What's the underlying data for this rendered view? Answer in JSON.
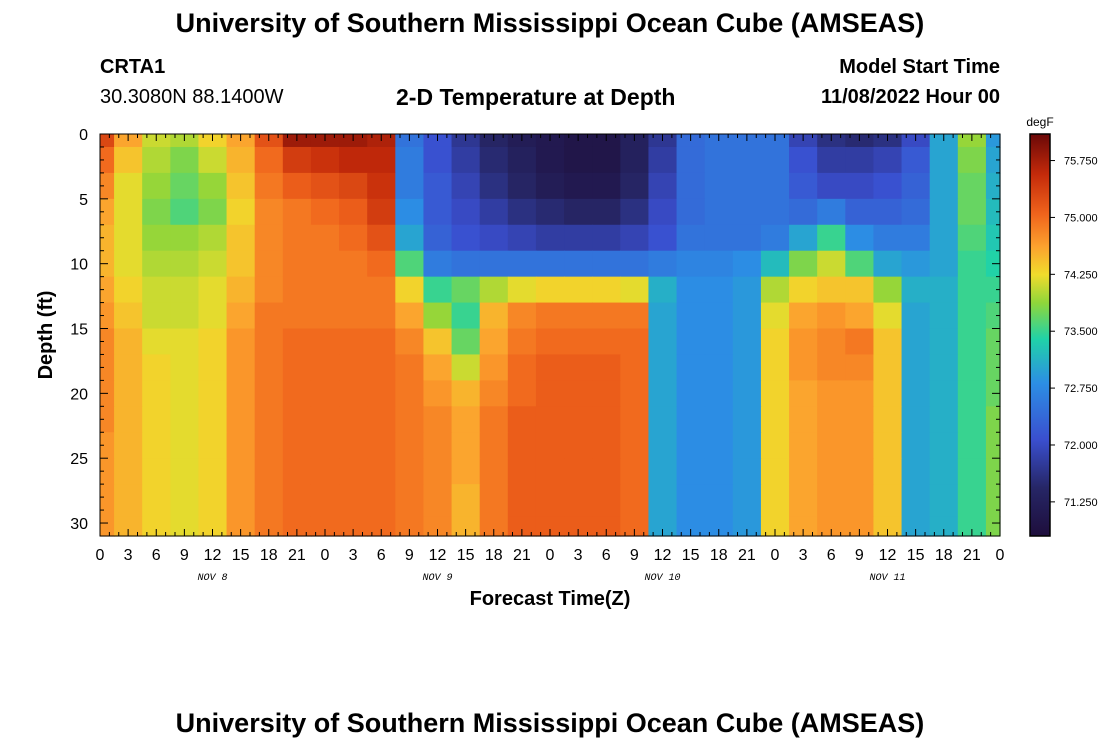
{
  "page": {
    "title": "University of Southern Mississippi Ocean Cube (AMSEAS)",
    "footer_title": "University of Southern Mississippi Ocean Cube (AMSEAS)",
    "station_id": "CRTA1",
    "station_coords": "30.3080N  88.1400W",
    "chart_heading": "2-D Temperature at Depth",
    "model_start_label": "Model Start Time",
    "model_start_value": "11/08/2022 Hour 00"
  },
  "chart_data": {
    "type": "heatmap",
    "title": "2-D Temperature at Depth",
    "xlabel": "Forecast Time(Z)",
    "ylabel": "Depth (ft)",
    "x_unit": "hours since model start",
    "x_range": [
      0,
      96
    ],
    "y_range": [
      0,
      31
    ],
    "y_ticks": [
      0,
      5,
      10,
      15,
      20,
      25,
      30
    ],
    "x_ticks": [
      {
        "hour": 0,
        "label": "0"
      },
      {
        "hour": 3,
        "label": "3"
      },
      {
        "hour": 6,
        "label": "6"
      },
      {
        "hour": 9,
        "label": "9"
      },
      {
        "hour": 12,
        "label": "12"
      },
      {
        "hour": 15,
        "label": "15"
      },
      {
        "hour": 18,
        "label": "18"
      },
      {
        "hour": 21,
        "label": "21"
      },
      {
        "hour": 24,
        "label": "0"
      },
      {
        "hour": 27,
        "label": "3"
      },
      {
        "hour": 30,
        "label": "6"
      },
      {
        "hour": 33,
        "label": "9"
      },
      {
        "hour": 36,
        "label": "12"
      },
      {
        "hour": 39,
        "label": "15"
      },
      {
        "hour": 42,
        "label": "18"
      },
      {
        "hour": 45,
        "label": "21"
      },
      {
        "hour": 48,
        "label": "0"
      },
      {
        "hour": 51,
        "label": "3"
      },
      {
        "hour": 54,
        "label": "6"
      },
      {
        "hour": 57,
        "label": "9"
      },
      {
        "hour": 60,
        "label": "12"
      },
      {
        "hour": 63,
        "label": "15"
      },
      {
        "hour": 66,
        "label": "18"
      },
      {
        "hour": 69,
        "label": "21"
      },
      {
        "hour": 72,
        "label": "0"
      },
      {
        "hour": 75,
        "label": "3"
      },
      {
        "hour": 78,
        "label": "6"
      },
      {
        "hour": 81,
        "label": "9"
      },
      {
        "hour": 84,
        "label": "12"
      },
      {
        "hour": 87,
        "label": "15"
      },
      {
        "hour": 90,
        "label": "18"
      },
      {
        "hour": 93,
        "label": "21"
      },
      {
        "hour": 96,
        "label": "0"
      }
    ],
    "date_labels": [
      {
        "hour": 12,
        "label": "NOV 8"
      },
      {
        "hour": 36,
        "label": "NOV 9"
      },
      {
        "hour": 60,
        "label": "NOV 10"
      },
      {
        "hour": 84,
        "label": "NOV 11"
      }
    ],
    "colorbar": {
      "unit": "degF",
      "min": 70.8,
      "max": 76.1,
      "ticks": [
        {
          "value": 75.75,
          "label": "75.750"
        },
        {
          "value": 75.0,
          "label": "75.000"
        },
        {
          "value": 74.25,
          "label": "74.250"
        },
        {
          "value": 73.5,
          "label": "73.500"
        },
        {
          "value": 72.75,
          "label": "72.750"
        },
        {
          "value": 72.0,
          "label": "72.000"
        },
        {
          "value": 71.25,
          "label": "71.250"
        }
      ]
    },
    "depths": [
      0,
      2,
      4,
      6,
      8,
      10,
      12,
      14,
      16,
      18,
      20,
      22,
      24,
      26,
      28,
      31
    ],
    "times": [
      0,
      3,
      6,
      9,
      12,
      15,
      18,
      21,
      24,
      27,
      30,
      33,
      36,
      39,
      42,
      45,
      48,
      51,
      54,
      57,
      60,
      63,
      66,
      69,
      72,
      75,
      78,
      81,
      84,
      87,
      90,
      93,
      96
    ],
    "values": [
      [
        75.3,
        74.6,
        74.1,
        74.0,
        74.3,
        74.6,
        75.2,
        75.8,
        75.8,
        75.8,
        75.7,
        72.5,
        72.1,
        71.7,
        71.4,
        71.2,
        71.1,
        71.0,
        71.0,
        71.3,
        71.7,
        72.4,
        72.5,
        72.5,
        72.5,
        71.9,
        71.6,
        71.5,
        71.6,
        72.0,
        73.0,
        73.9,
        72.9
      ],
      [
        75.0,
        74.4,
        74.0,
        73.8,
        74.1,
        74.5,
        75.0,
        75.4,
        75.5,
        75.6,
        75.6,
        72.6,
        72.1,
        71.8,
        71.5,
        71.3,
        71.1,
        71.0,
        71.0,
        71.3,
        71.8,
        72.4,
        72.5,
        72.5,
        72.5,
        72.1,
        71.8,
        71.8,
        71.9,
        72.2,
        73.0,
        73.8,
        73.0
      ],
      [
        74.8,
        74.2,
        73.9,
        73.7,
        73.9,
        74.4,
        74.9,
        75.1,
        75.2,
        75.3,
        75.5,
        72.6,
        72.2,
        71.9,
        71.6,
        71.4,
        71.2,
        71.1,
        71.1,
        71.4,
        71.9,
        72.4,
        72.5,
        72.5,
        72.5,
        72.2,
        72.0,
        72.0,
        72.1,
        72.3,
        73.0,
        73.7,
        73.1
      ],
      [
        74.6,
        74.2,
        73.8,
        73.6,
        73.8,
        74.3,
        74.8,
        74.9,
        75.0,
        75.1,
        75.4,
        72.8,
        72.2,
        72.0,
        71.8,
        71.6,
        71.5,
        71.4,
        71.4,
        71.6,
        72.0,
        72.4,
        72.5,
        72.5,
        72.5,
        72.4,
        72.6,
        72.3,
        72.3,
        72.4,
        73.0,
        73.7,
        73.2
      ],
      [
        74.5,
        74.2,
        73.9,
        73.9,
        74.0,
        74.4,
        74.8,
        74.9,
        74.9,
        75.0,
        75.2,
        73.0,
        72.3,
        72.1,
        72.0,
        71.9,
        71.8,
        71.8,
        71.8,
        71.9,
        72.1,
        72.5,
        72.5,
        72.5,
        72.6,
        73.0,
        73.5,
        72.8,
        72.6,
        72.6,
        73.0,
        73.6,
        73.3
      ],
      [
        74.5,
        74.2,
        74.0,
        74.0,
        74.1,
        74.4,
        74.8,
        74.9,
        74.9,
        74.9,
        75.0,
        73.6,
        72.6,
        72.5,
        72.5,
        72.5,
        72.5,
        72.5,
        72.5,
        72.5,
        72.6,
        72.7,
        72.7,
        72.8,
        73.2,
        73.8,
        74.1,
        73.6,
        73.0,
        72.9,
        73.0,
        73.5,
        73.4
      ],
      [
        74.6,
        74.3,
        74.1,
        74.1,
        74.2,
        74.5,
        74.8,
        74.9,
        74.9,
        74.9,
        74.9,
        74.3,
        73.5,
        73.7,
        74.0,
        74.2,
        74.3,
        74.3,
        74.3,
        74.2,
        73.1,
        72.8,
        72.8,
        72.9,
        74.0,
        74.3,
        74.4,
        74.4,
        73.9,
        73.1,
        73.1,
        73.5,
        73.5
      ],
      [
        74.7,
        74.4,
        74.1,
        74.1,
        74.2,
        74.6,
        74.9,
        74.9,
        74.9,
        74.9,
        74.9,
        74.6,
        73.9,
        73.5,
        74.5,
        74.8,
        74.9,
        74.9,
        74.9,
        74.9,
        73.0,
        72.8,
        72.8,
        72.9,
        74.2,
        74.6,
        74.7,
        74.6,
        74.2,
        73.0,
        73.1,
        73.5,
        73.6
      ],
      [
        74.8,
        74.5,
        74.2,
        74.2,
        74.3,
        74.7,
        74.9,
        75.0,
        75.0,
        75.0,
        75.0,
        74.8,
        74.4,
        73.7,
        74.6,
        74.9,
        75.0,
        75.0,
        75.0,
        75.0,
        73.0,
        72.8,
        72.8,
        72.9,
        74.3,
        74.7,
        74.8,
        74.9,
        74.4,
        73.0,
        73.1,
        73.5,
        73.7
      ],
      [
        74.8,
        74.5,
        74.3,
        74.2,
        74.3,
        74.7,
        74.9,
        75.0,
        75.0,
        75.0,
        75.0,
        74.9,
        74.6,
        74.1,
        74.7,
        75.0,
        75.1,
        75.1,
        75.1,
        75.0,
        73.0,
        72.8,
        72.8,
        72.9,
        74.3,
        74.7,
        74.8,
        74.8,
        74.4,
        73.0,
        73.1,
        73.5,
        73.7
      ],
      [
        74.8,
        74.5,
        74.3,
        74.2,
        74.3,
        74.7,
        74.9,
        75.0,
        75.0,
        75.0,
        75.0,
        74.9,
        74.7,
        74.5,
        74.8,
        75.0,
        75.1,
        75.1,
        75.1,
        75.0,
        73.0,
        72.8,
        72.8,
        72.9,
        74.3,
        74.6,
        74.7,
        74.7,
        74.4,
        73.0,
        73.1,
        73.5,
        73.7
      ],
      [
        74.8,
        74.5,
        74.3,
        74.2,
        74.3,
        74.7,
        74.9,
        75.0,
        75.0,
        75.0,
        75.0,
        74.9,
        74.8,
        74.6,
        74.9,
        75.1,
        75.1,
        75.1,
        75.1,
        75.0,
        73.0,
        72.8,
        72.8,
        72.9,
        74.3,
        74.6,
        74.7,
        74.7,
        74.4,
        73.0,
        73.1,
        73.5,
        73.8
      ],
      [
        74.7,
        74.5,
        74.3,
        74.2,
        74.3,
        74.7,
        74.9,
        75.0,
        75.0,
        75.0,
        75.0,
        74.9,
        74.8,
        74.6,
        74.9,
        75.1,
        75.1,
        75.1,
        75.1,
        75.0,
        73.0,
        72.8,
        72.8,
        72.9,
        74.3,
        74.6,
        74.7,
        74.7,
        74.4,
        73.0,
        73.1,
        73.5,
        73.8
      ],
      [
        74.7,
        74.5,
        74.3,
        74.2,
        74.3,
        74.7,
        74.9,
        75.0,
        75.0,
        75.0,
        75.0,
        74.9,
        74.8,
        74.6,
        74.9,
        75.1,
        75.1,
        75.1,
        75.1,
        75.0,
        73.0,
        72.8,
        72.8,
        72.9,
        74.3,
        74.6,
        74.7,
        74.7,
        74.4,
        73.0,
        73.1,
        73.5,
        73.8
      ],
      [
        74.7,
        74.5,
        74.3,
        74.2,
        74.3,
        74.7,
        74.9,
        75.0,
        75.0,
        75.0,
        75.0,
        74.9,
        74.8,
        74.5,
        74.9,
        75.1,
        75.1,
        75.1,
        75.1,
        75.0,
        73.0,
        72.8,
        72.8,
        72.9,
        74.3,
        74.6,
        74.7,
        74.7,
        74.4,
        73.0,
        73.1,
        73.5,
        73.8
      ],
      [
        74.7,
        74.5,
        74.3,
        74.2,
        74.3,
        74.7,
        74.9,
        75.0,
        75.0,
        75.0,
        75.0,
        74.9,
        74.8,
        74.5,
        74.9,
        75.1,
        75.1,
        75.1,
        75.1,
        75.0,
        73.0,
        72.8,
        72.8,
        72.9,
        74.3,
        74.6,
        74.7,
        74.7,
        74.4,
        73.0,
        73.1,
        73.5,
        73.8
      ]
    ]
  }
}
